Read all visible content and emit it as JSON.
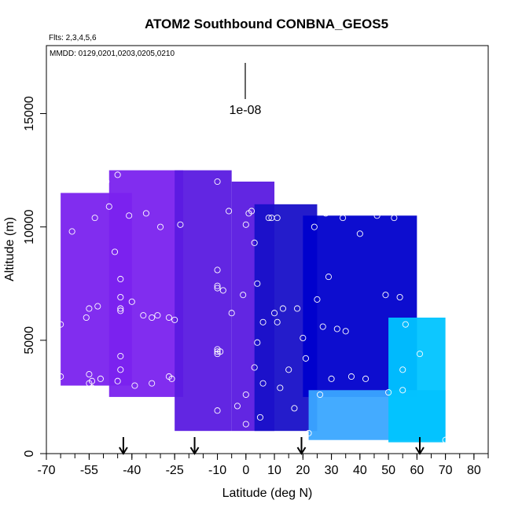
{
  "chart_data": {
    "type": "heatmap",
    "title": "ATOM2 Southbound CONBNA_GEOS5",
    "subtitle_flights": "Flts: 2,3,4,5,6",
    "subtitle_dates": "MMDD: 0129,0201,0203,0205,0210",
    "scale_label": "1e-08",
    "xlabel": "Latitude (deg N)",
    "ylabel": "Altitude (m)",
    "xlim": [
      -70,
      85
    ],
    "ylim": [
      0,
      18000
    ],
    "x_ticks": [
      "-70",
      "-55",
      "-40",
      "-25",
      "-10",
      "0",
      "10",
      "20",
      "30",
      "40",
      "50",
      "60",
      "70",
      "80"
    ],
    "x_tick_values": [
      -70,
      -55,
      -40,
      -25,
      -10,
      0,
      10,
      20,
      30,
      40,
      50,
      60,
      70,
      80
    ],
    "x_minor_step": 5,
    "y_ticks": [
      "0",
      "5000",
      "10000",
      "15000"
    ],
    "y_tick_values": [
      0,
      5000,
      10000,
      15000
    ],
    "arrow_latitudes": [
      -43,
      -18,
      19.5,
      61
    ],
    "colors": {
      "purple": "#7a22ee",
      "violet": "#5a1ae0",
      "dark_blue": "#1810c8",
      "blue": "#0000cc",
      "light_blue": "#3aa6ff",
      "cyan": "#00c4ff"
    },
    "curtain_regions": [
      {
        "lat_range": [
          -65,
          -40
        ],
        "alt_range": [
          3000,
          11500
        ],
        "color": "purple"
      },
      {
        "lat_range": [
          -48,
          -22
        ],
        "alt_range": [
          2500,
          12500
        ],
        "color": "purple"
      },
      {
        "lat_range": [
          -25,
          -5
        ],
        "alt_range": [
          1000,
          12500
        ],
        "color": "violet"
      },
      {
        "lat_range": [
          -5,
          10
        ],
        "alt_range": [
          1000,
          12000
        ],
        "color": "violet"
      },
      {
        "lat_range": [
          3,
          25
        ],
        "alt_range": [
          1000,
          11000
        ],
        "color": "dark_blue"
      },
      {
        "lat_range": [
          20,
          60
        ],
        "alt_range": [
          2500,
          10500
        ],
        "color": "blue"
      },
      {
        "lat_range": [
          22,
          70
        ],
        "alt_range": [
          600,
          2800
        ],
        "color": "light_blue"
      },
      {
        "lat_range": [
          50,
          70
        ],
        "alt_range": [
          500,
          6000
        ],
        "color": "cyan"
      }
    ],
    "observation_points": [
      {
        "x": -65,
        "y": 5700
      },
      {
        "x": -65,
        "y": 3400
      },
      {
        "x": -61,
        "y": 9800
      },
      {
        "x": -56,
        "y": 6000
      },
      {
        "x": -55,
        "y": 6400
      },
      {
        "x": -55,
        "y": 3500
      },
      {
        "x": -55,
        "y": 3100
      },
      {
        "x": -54,
        "y": 3200
      },
      {
        "x": -54,
        "y": 2900
      },
      {
        "x": -53,
        "y": 10400
      },
      {
        "x": -53,
        "y": 11700
      },
      {
        "x": -52,
        "y": 6500
      },
      {
        "x": -51,
        "y": 3300
      },
      {
        "x": -49,
        "y": 12000
      },
      {
        "x": -48,
        "y": 10900
      },
      {
        "x": -46,
        "y": 8900
      },
      {
        "x": -45,
        "y": 12300
      },
      {
        "x": -45,
        "y": 3200
      },
      {
        "x": -44,
        "y": 7700
      },
      {
        "x": -44,
        "y": 6900
      },
      {
        "x": -44,
        "y": 6400
      },
      {
        "x": -44,
        "y": 6300
      },
      {
        "x": -44,
        "y": 4300
      },
      {
        "x": -44,
        "y": 3700
      },
      {
        "x": -41,
        "y": 10500
      },
      {
        "x": -40,
        "y": 6700
      },
      {
        "x": -39,
        "y": 3000
      },
      {
        "x": -36,
        "y": 6100
      },
      {
        "x": -35,
        "y": 10600
      },
      {
        "x": -33,
        "y": 6000
      },
      {
        "x": -33,
        "y": 3100
      },
      {
        "x": -31,
        "y": 6100
      },
      {
        "x": -30,
        "y": 10000
      },
      {
        "x": -27,
        "y": 6000
      },
      {
        "x": -27,
        "y": 3400
      },
      {
        "x": -26,
        "y": 3300
      },
      {
        "x": -25,
        "y": 5900
      },
      {
        "x": -23,
        "y": 10100
      },
      {
        "x": -10,
        "y": 12000
      },
      {
        "x": -10,
        "y": 8100
      },
      {
        "x": -10,
        "y": 7400
      },
      {
        "x": -10,
        "y": 7300
      },
      {
        "x": -10,
        "y": 4600
      },
      {
        "x": -10,
        "y": 4500
      },
      {
        "x": -10,
        "y": 4400
      },
      {
        "x": -10,
        "y": 1900
      },
      {
        "x": -9,
        "y": 4500
      },
      {
        "x": -8,
        "y": 7200
      },
      {
        "x": -6,
        "y": 10700
      },
      {
        "x": -5,
        "y": 6200
      },
      {
        "x": -3,
        "y": 2100
      },
      {
        "x": -1,
        "y": 7000
      },
      {
        "x": 0,
        "y": 10100
      },
      {
        "x": 0,
        "y": 2600
      },
      {
        "x": 0,
        "y": 1300
      },
      {
        "x": 1,
        "y": 10600
      },
      {
        "x": 2,
        "y": 10700
      },
      {
        "x": 3,
        "y": 9300
      },
      {
        "x": 3,
        "y": 3800
      },
      {
        "x": 4,
        "y": 7500
      },
      {
        "x": 4,
        "y": 4900
      },
      {
        "x": 5,
        "y": 1600
      },
      {
        "x": 6,
        "y": 5800
      },
      {
        "x": 6,
        "y": 3100
      },
      {
        "x": 8,
        "y": 10400
      },
      {
        "x": 9,
        "y": 10400
      },
      {
        "x": 10,
        "y": 6200
      },
      {
        "x": 11,
        "y": 10400
      },
      {
        "x": 11,
        "y": 5800
      },
      {
        "x": 12,
        "y": 2900
      },
      {
        "x": 13,
        "y": 6400
      },
      {
        "x": 15,
        "y": 3700
      },
      {
        "x": 17,
        "y": 2000
      },
      {
        "x": 18,
        "y": 6400
      },
      {
        "x": 20,
        "y": 5100
      },
      {
        "x": 21,
        "y": 4200
      },
      {
        "x": 22,
        "y": 900
      },
      {
        "x": 24,
        "y": 10000
      },
      {
        "x": 25,
        "y": 6800
      },
      {
        "x": 26,
        "y": 2600
      },
      {
        "x": 27,
        "y": 5600
      },
      {
        "x": 28,
        "y": 10600
      },
      {
        "x": 29,
        "y": 7800
      },
      {
        "x": 30,
        "y": 3300
      },
      {
        "x": 32,
        "y": 5500
      },
      {
        "x": 34,
        "y": 10400
      },
      {
        "x": 35,
        "y": 5400
      },
      {
        "x": 37,
        "y": 3400
      },
      {
        "x": 40,
        "y": 9700
      },
      {
        "x": 42,
        "y": 3300
      },
      {
        "x": 46,
        "y": 10500
      },
      {
        "x": 49,
        "y": 7000
      },
      {
        "x": 50,
        "y": 2700
      },
      {
        "x": 52,
        "y": 10400
      },
      {
        "x": 54,
        "y": 6900
      },
      {
        "x": 55,
        "y": 3700
      },
      {
        "x": 55,
        "y": 2800
      },
      {
        "x": 56,
        "y": 5700
      },
      {
        "x": 61,
        "y": 4400
      },
      {
        "x": 70,
        "y": 600
      }
    ],
    "grid": false,
    "legend": "none"
  }
}
